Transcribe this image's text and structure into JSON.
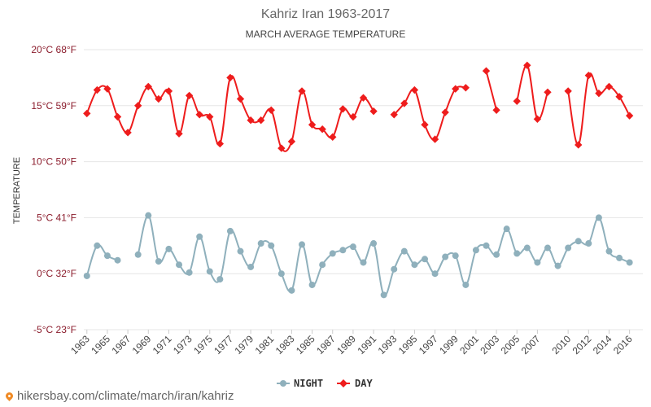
{
  "chart_data": {
    "type": "line",
    "title": "Kahriz Iran 1963-2017",
    "subtitle": "MARCH AVERAGE TEMPERATURE",
    "ylabel": "TEMPERATURE",
    "ylim": [
      -5,
      20
    ],
    "yticks": [
      {
        "value": 20,
        "label": "20°C 68°F"
      },
      {
        "value": 15,
        "label": "15°C 59°F"
      },
      {
        "value": 10,
        "label": "10°C 50°F"
      },
      {
        "value": 5,
        "label": "5°C 41°F"
      },
      {
        "value": 0,
        "label": "0°C 32°F"
      },
      {
        "value": -5,
        "label": "-5°C 23°F"
      }
    ],
    "xlim": [
      1963,
      2017
    ],
    "xticks": [
      "1963",
      "1965",
      "1967",
      "1969",
      "1971",
      "1973",
      "1975",
      "1977",
      "1979",
      "1981",
      "1983",
      "1985",
      "1987",
      "1989",
      "1991",
      "1993",
      "1995",
      "1997",
      "1999",
      "2001",
      "2003",
      "2005",
      "2007",
      "2010",
      "2012",
      "2014",
      "2016"
    ],
    "x": [
      1963,
      1964,
      1965,
      1966,
      1967,
      1968,
      1969,
      1970,
      1971,
      1972,
      1973,
      1974,
      1975,
      1976,
      1977,
      1978,
      1979,
      1980,
      1981,
      1982,
      1983,
      1984,
      1985,
      1986,
      1987,
      1988,
      1989,
      1990,
      1991,
      1992,
      1993,
      1994,
      1995,
      1996,
      1997,
      1998,
      1999,
      2000,
      2001,
      2002,
      2003,
      2004,
      2005,
      2006,
      2007,
      2008,
      2009,
      2010,
      2011,
      2012,
      2013,
      2014,
      2015,
      2016,
      2017
    ],
    "series": [
      {
        "name": "NIGHT",
        "color": "#8fb0bc",
        "values": [
          -0.2,
          2.5,
          1.6,
          1.2,
          null,
          1.7,
          5.2,
          1.1,
          2.2,
          0.8,
          0.1,
          3.3,
          0.2,
          -0.5,
          3.8,
          2.0,
          0.6,
          2.7,
          2.5,
          0.0,
          -1.5,
          2.6,
          -1.0,
          0.8,
          1.8,
          2.1,
          2.4,
          1.0,
          2.7,
          -1.9,
          0.4,
          2.0,
          0.8,
          1.3,
          0.0,
          1.5,
          1.6,
          -1.0,
          2.1,
          2.5,
          1.7,
          4.0,
          1.8,
          2.3,
          1.0,
          2.3,
          0.7,
          2.3,
          2.9,
          2.7,
          5.0,
          2.0,
          1.4,
          1.0,
          null
        ]
      },
      {
        "name": "DAY",
        "color": "#ee1c1c",
        "values": [
          14.3,
          16.4,
          16.5,
          14.0,
          12.6,
          15.0,
          16.7,
          15.6,
          16.3,
          12.5,
          15.9,
          14.2,
          14.0,
          11.6,
          17.5,
          15.6,
          13.7,
          13.7,
          14.6,
          11.2,
          11.8,
          16.3,
          13.3,
          12.9,
          12.2,
          14.7,
          14.0,
          15.7,
          14.5,
          null,
          14.2,
          15.2,
          16.4,
          13.3,
          12.0,
          14.4,
          16.5,
          16.6,
          null,
          18.1,
          14.6,
          null,
          15.4,
          18.6,
          13.8,
          16.2,
          null,
          16.3,
          11.5,
          17.7,
          16.1,
          16.7,
          15.8,
          14.1,
          null
        ]
      }
    ],
    "legend": "bottom-center"
  },
  "watermark": "hikersbay.com/climate/march/iran/kahriz",
  "colors": {
    "grid": "#e6e6e6",
    "pin": "#f08a24"
  }
}
